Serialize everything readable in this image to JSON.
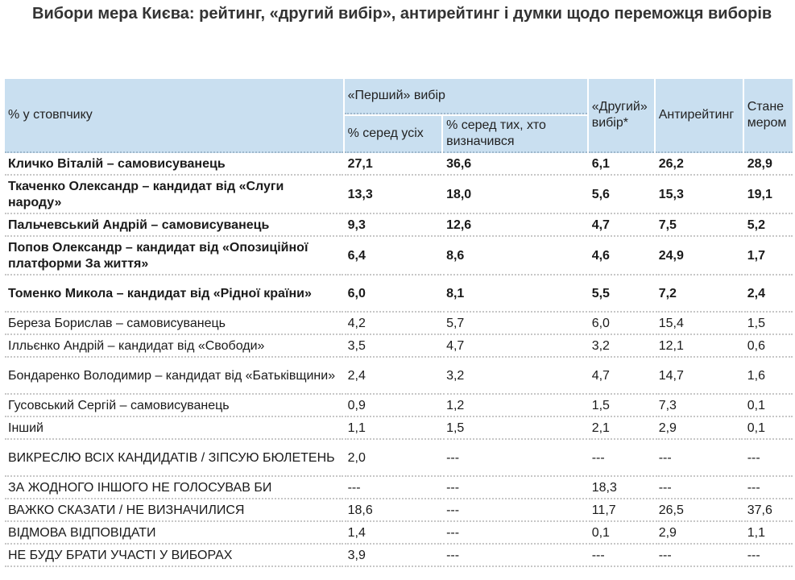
{
  "title": "Вибори мера Києва: рейтинг, «другий вибір», антирейтинг і думки щодо переможця виборів",
  "table": {
    "header": {
      "row_label": "% у стовпчику",
      "first_choice": "«Перший» вибір",
      "all": "% серед усіх",
      "decided": "% серед тих, хто визначився",
      "second_choice": "«Другий» вибір*",
      "anti_rating": "Антирейтинг",
      "will_be_mayor": "Стане мером"
    },
    "rows": [
      {
        "name": "Кличко Віталій – самовисуванець",
        "all": "27,1",
        "decided": "36,6",
        "second": "6,1",
        "anti": "26,2",
        "mayor": "28,9"
      },
      {
        "name": "Ткаченко Олександр – кандидат від «Слуги народу»",
        "all": "13,3",
        "decided": "18,0",
        "second": "5,6",
        "anti": "15,3",
        "mayor": "19,1"
      },
      {
        "name": "Пальчевський Андрій – самовисуванець",
        "all": "9,3",
        "decided": "12,6",
        "second": "4,7",
        "anti": "7,5",
        "mayor": "5,2"
      },
      {
        "name": "Попов Олександр – кандидат від «Опозиційної платформи За життя»",
        "all": "6,4",
        "decided": "8,6",
        "second": "4,6",
        "anti": "24,9",
        "mayor": "1,7"
      },
      {
        "name": "Томенко Микола – кандидат від «Рідної країни»",
        "all": "6,0",
        "decided": "8,1",
        "second": "5,5",
        "anti": "7,2",
        "mayor": "2,4"
      },
      {
        "name": "Береза Борислав – самовисуванець",
        "all": "4,2",
        "decided": "5,7",
        "second": "6,0",
        "anti": "15,4",
        "mayor": "1,5"
      },
      {
        "name": "Ілльєнко Андрій – кандидат від «Свободи»",
        "all": "3,5",
        "decided": "4,7",
        "second": "3,2",
        "anti": "12,1",
        "mayor": "0,6"
      },
      {
        "name": "Бондаренко Володимир – кандидат від «Батьківщини»",
        "all": "2,4",
        "decided": "3,2",
        "second": "4,7",
        "anti": "14,7",
        "mayor": "1,6"
      },
      {
        "name": "Гусовський Сергій – самовисуванець",
        "all": "0,9",
        "decided": "1,2",
        "second": "1,5",
        "anti": "7,3",
        "mayor": "0,1"
      },
      {
        "name": "Інший",
        "all": "1,1",
        "decided": "1,5",
        "second": "2,1",
        "anti": "2,9",
        "mayor": "0,1"
      },
      {
        "name": "ВИКРЕСЛЮ ВСІХ КАНДИДАТІВ / ЗІПСУЮ БЮЛЕТЕНЬ",
        "all": "2,0",
        "decided": "---",
        "second": "---",
        "anti": "---",
        "mayor": "---"
      },
      {
        "name": "ЗА ЖОДНОГО ІНШОГО НЕ ГОЛОСУВАВ БИ",
        "all": "---",
        "decided": "---",
        "second": "18,3",
        "anti": "---",
        "mayor": "---"
      },
      {
        "name": "ВАЖКО СКАЗАТИ / НЕ ВИЗНАЧИЛИСЯ",
        "all": "18,6",
        "decided": "---",
        "second": "11,7",
        "anti": "26,5",
        "mayor": "37,6"
      },
      {
        "name": "ВІДМОВА ВІДПОВІДАТИ",
        "all": "1,4",
        "decided": "---",
        "second": "0,1",
        "anti": "2,9",
        "mayor": "1,1"
      },
      {
        "name": "НЕ БУДУ БРАТИ УЧАСТІ У ВИБОРАХ",
        "all": "3,9",
        "decided": "---",
        "second": "---",
        "anti": "---",
        "mayor": "---"
      }
    ]
  }
}
